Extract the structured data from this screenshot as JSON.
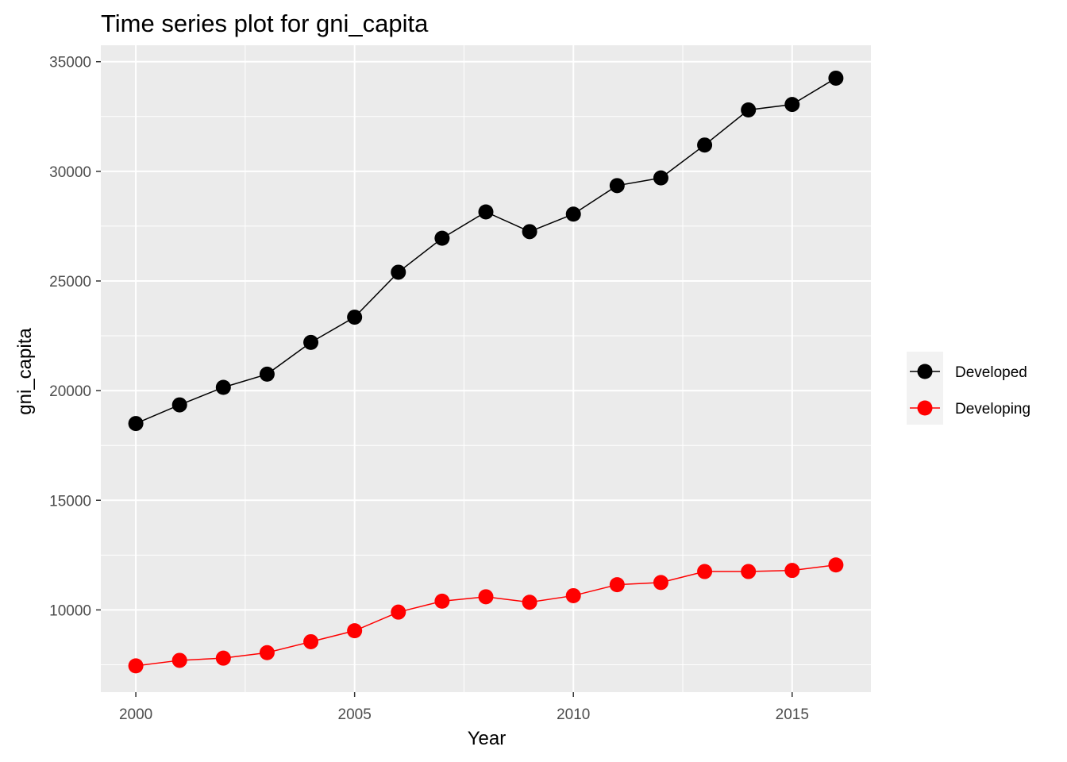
{
  "chart_data": {
    "type": "line",
    "title": "Time series plot for gni_capita",
    "xlabel": "Year",
    "ylabel": "gni_capita",
    "x": [
      2000,
      2001,
      2002,
      2003,
      2004,
      2005,
      2006,
      2007,
      2008,
      2009,
      2010,
      2011,
      2012,
      2013,
      2014,
      2015,
      2016
    ],
    "series": [
      {
        "name": "Developed",
        "color": "#000000",
        "values": [
          18500,
          19350,
          20150,
          20750,
          22200,
          23350,
          25400,
          26950,
          28150,
          27250,
          28050,
          29350,
          29700,
          31200,
          32800,
          33050,
          34250
        ]
      },
      {
        "name": "Developing",
        "color": "#ff0000",
        "values": [
          7450,
          7700,
          7800,
          8050,
          8550,
          9050,
          9900,
          10400,
          10600,
          10350,
          10650,
          11150,
          11250,
          11750,
          11750,
          11800,
          12050
        ]
      }
    ],
    "xlim": [
      1999.2,
      2016.8
    ],
    "ylim": [
      6250,
      35750
    ],
    "xticks": [
      2000,
      2005,
      2010,
      2015
    ],
    "xtick_labels": [
      "2000",
      "2005",
      "2010",
      "2015"
    ],
    "yticks": [
      10000,
      15000,
      20000,
      25000,
      30000,
      35000
    ],
    "ytick_labels": [
      "10000",
      "15000",
      "20000",
      "25000",
      "30000",
      "35000"
    ],
    "panel_background": "#ebebeb",
    "grid": true,
    "legend_position": "right"
  }
}
